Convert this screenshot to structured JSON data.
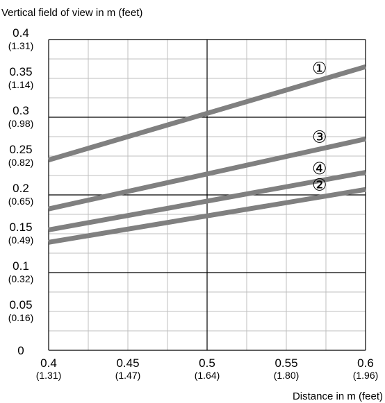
{
  "chart_data": {
    "type": "line",
    "xlabel": "Distance in m (feet)",
    "ylabel": "Vertical field of view in m (feet)",
    "xlim": [
      0.4,
      0.6
    ],
    "ylim": [
      0,
      0.4
    ],
    "grid": true,
    "grid_major_color": "#000000",
    "grid_minor_color": "#bfbfbf",
    "x_ticks": [
      {
        "value": 0.4,
        "label": "0.4",
        "sub": "(1.31)"
      },
      {
        "value": 0.45,
        "label": "0.45",
        "sub": "(1.47)"
      },
      {
        "value": 0.5,
        "label": "0.5",
        "sub": "(1.64)"
      },
      {
        "value": 0.55,
        "label": "0.55",
        "sub": "(1.80)"
      },
      {
        "value": 0.6,
        "label": "0.6",
        "sub": "(1.96)"
      }
    ],
    "y_ticks": [
      {
        "value": 0,
        "label": "0",
        "sub": ""
      },
      {
        "value": 0.05,
        "label": "0.05",
        "sub": "(0.16)"
      },
      {
        "value": 0.1,
        "label": "0.1",
        "sub": "(0.32)"
      },
      {
        "value": 0.15,
        "label": "0.15",
        "sub": "(0.49)"
      },
      {
        "value": 0.2,
        "label": "0.2",
        "sub": "(0.65)"
      },
      {
        "value": 0.25,
        "label": "0.25",
        "sub": "(0.82)"
      },
      {
        "value": 0.3,
        "label": "0.3",
        "sub": "(0.98)"
      },
      {
        "value": 0.35,
        "label": "0.35",
        "sub": "(1.14)"
      },
      {
        "value": 0.4,
        "label": "0.4",
        "sub": "(1.31)"
      }
    ],
    "line_color": "#808080",
    "series": [
      {
        "marker": "①",
        "x": [
          0.4,
          0.6
        ],
        "y": [
          0.245,
          0.365
        ]
      },
      {
        "marker": "②",
        "x": [
          0.4,
          0.6
        ],
        "y": [
          0.139,
          0.207
        ]
      },
      {
        "marker": "③",
        "x": [
          0.4,
          0.6
        ],
        "y": [
          0.182,
          0.272
        ]
      },
      {
        "marker": "④",
        "x": [
          0.4,
          0.6
        ],
        "y": [
          0.155,
          0.229
        ]
      }
    ]
  }
}
